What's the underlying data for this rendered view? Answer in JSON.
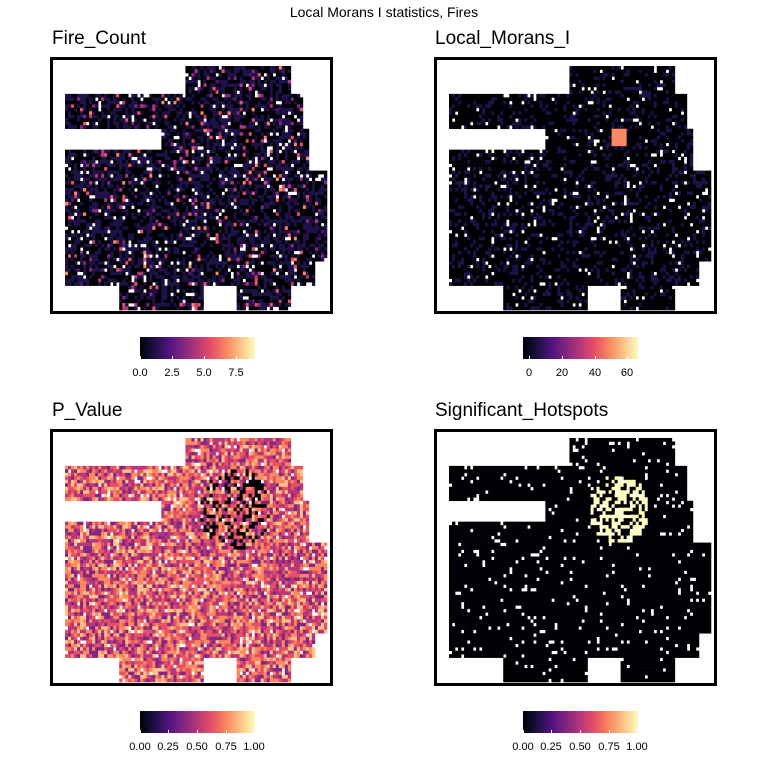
{
  "title": "Local Morans I statistics, Fires",
  "palette": [
    "#000004",
    "#1d1147",
    "#51127c",
    "#822681",
    "#b63679",
    "#e65164",
    "#fb8861",
    "#fec287",
    "#fcfdbf"
  ],
  "panels": [
    {
      "id": "fire-count",
      "title": "Fire_Count",
      "legend_ticks": [
        "0.0",
        "2.5",
        "5.0",
        "7.5"
      ],
      "legend_range": [
        0,
        9
      ]
    },
    {
      "id": "local-morans",
      "title": "Local_Morans_I",
      "legend_ticks": [
        "0",
        "20",
        "40",
        "60"
      ],
      "legend_range": [
        0,
        68
      ]
    },
    {
      "id": "p-value",
      "title": "P_Value",
      "legend_ticks": [
        "0.00",
        "0.25",
        "0.50",
        "0.75",
        "1.00"
      ],
      "legend_range": [
        0,
        1
      ]
    },
    {
      "id": "significant-hotspots",
      "title": "Significant_Hotspots",
      "legend_ticks": [
        "0.00",
        "0.25",
        "0.50",
        "0.75",
        "1.00"
      ],
      "legend_range": [
        0,
        1
      ]
    }
  ]
}
